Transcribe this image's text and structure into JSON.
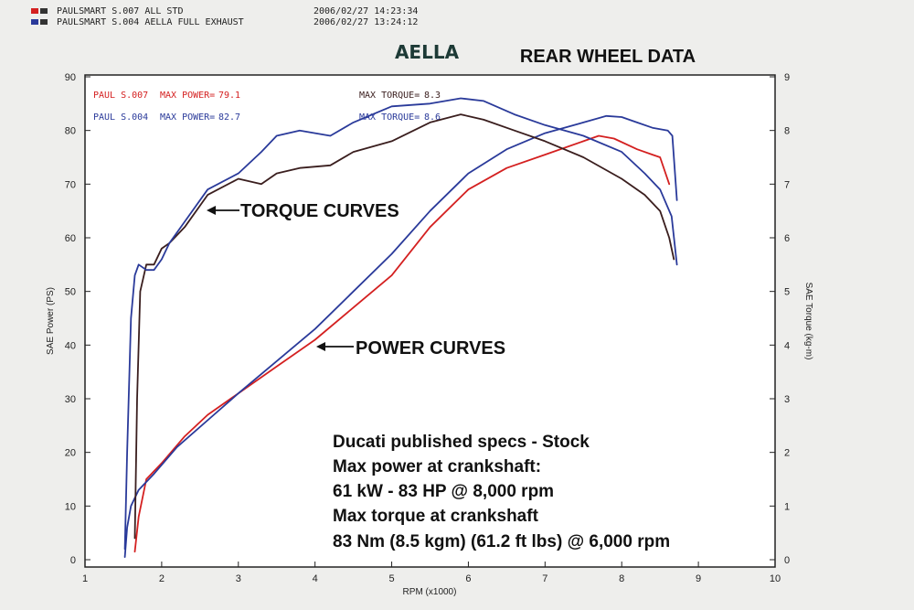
{
  "header": {
    "runs": [
      {
        "label": "PAULSMART S.007 ALL STD",
        "timestamp": "2006/02/27 14:23:34",
        "color": "#d42020"
      },
      {
        "label": "PAULSMART S.004 AELLA FULL EXHAUST",
        "timestamp": "2006/02/27 13:24:12",
        "color": "#2a3a9a"
      }
    ]
  },
  "brand": "AELLA",
  "title": "REAR WHEEL DATA",
  "chart_data": {
    "type": "line",
    "xlabel": "RPM (x1000)",
    "ylabel_left": "SAE Power (PS)",
    "ylabel_right": "SAE Torque (kg-m)",
    "xlim": [
      1,
      10
    ],
    "ylim_left": [
      0,
      90
    ],
    "ylim_right": [
      0,
      9
    ],
    "x_ticks": [
      "1",
      "2",
      "3",
      "4",
      "5",
      "6",
      "7",
      "8",
      "9",
      "10"
    ],
    "y_ticks_left": [
      "0",
      "10",
      "20",
      "30",
      "40",
      "50",
      "60",
      "70",
      "80",
      "90"
    ],
    "y_ticks_right": [
      "0",
      "1",
      "2",
      "3",
      "4",
      "5",
      "6",
      "7",
      "8",
      "9"
    ],
    "grid": false,
    "series": [
      {
        "name": "PAUL S.007",
        "kind": "power",
        "axis": "left",
        "color": "#d42020",
        "x": [
          1.65,
          1.7,
          1.8,
          2.0,
          2.3,
          2.6,
          3.0,
          3.5,
          4.0,
          4.5,
          5.0,
          5.5,
          6.0,
          6.5,
          7.0,
          7.5,
          7.7,
          7.9,
          8.2,
          8.4,
          8.5,
          8.62
        ],
        "y": [
          1.5,
          8,
          15,
          18,
          23,
          27,
          31,
          36,
          41,
          47,
          53,
          62,
          69,
          73,
          75.5,
          78,
          79,
          78.5,
          76.5,
          75.5,
          75,
          70
        ]
      },
      {
        "name": "PAUL S.004",
        "kind": "power",
        "axis": "left",
        "color": "#2a3a9a",
        "x": [
          1.52,
          1.55,
          1.6,
          1.7,
          1.9,
          2.2,
          2.6,
          3.0,
          3.5,
          4.0,
          4.5,
          5.0,
          5.5,
          6.0,
          6.5,
          7.0,
          7.5,
          7.8,
          8.0,
          8.2,
          8.4,
          8.6,
          8.66,
          8.72
        ],
        "y": [
          0.5,
          6,
          10,
          13,
          16,
          21,
          26,
          31,
          37,
          43,
          50,
          57,
          65,
          72,
          76.5,
          79.5,
          81.5,
          82.7,
          82.5,
          81.5,
          80.5,
          80,
          79,
          67
        ]
      },
      {
        "name": "PAUL S.007",
        "kind": "torque",
        "axis": "right",
        "color": "#3a1e1e",
        "x": [
          1.65,
          1.68,
          1.72,
          1.8,
          1.9,
          2.0,
          2.1,
          2.3,
          2.6,
          3.0,
          3.3,
          3.5,
          3.8,
          4.2,
          4.5,
          5.0,
          5.5,
          5.9,
          6.2,
          6.6,
          7.0,
          7.5,
          8.0,
          8.3,
          8.5,
          8.62,
          8.68
        ],
        "y": [
          0.4,
          3.0,
          5.0,
          5.5,
          5.5,
          5.8,
          5.9,
          6.2,
          6.8,
          7.1,
          7.0,
          7.2,
          7.3,
          7.35,
          7.6,
          7.8,
          8.15,
          8.3,
          8.2,
          8.0,
          7.8,
          7.5,
          7.1,
          6.8,
          6.5,
          6.0,
          5.6
        ]
      },
      {
        "name": "PAUL S.004",
        "kind": "torque",
        "axis": "right",
        "color": "#2a3a9a",
        "x": [
          1.52,
          1.55,
          1.6,
          1.65,
          1.7,
          1.8,
          1.9,
          2.0,
          2.1,
          2.3,
          2.6,
          3.0,
          3.3,
          3.5,
          3.8,
          4.2,
          4.5,
          5.0,
          5.5,
          5.9,
          6.2,
          6.6,
          7.0,
          7.5,
          8.0,
          8.3,
          8.5,
          8.65,
          8.72
        ],
        "y": [
          0.2,
          2.0,
          4.5,
          5.3,
          5.5,
          5.4,
          5.4,
          5.6,
          5.9,
          6.3,
          6.9,
          7.2,
          7.6,
          7.9,
          8.0,
          7.9,
          8.15,
          8.45,
          8.5,
          8.6,
          8.55,
          8.3,
          8.1,
          7.9,
          7.6,
          7.2,
          6.9,
          6.4,
          5.5
        ]
      }
    ],
    "annotations": {
      "legend": [
        {
          "run": "PAUL S.007",
          "power_label": "MAX POWER=",
          "power_value": "79.1",
          "torque_label": "MAX TORQUE=",
          "torque_value": "8.3",
          "color": "#d42020",
          "torque_color": "#3a1e1e"
        },
        {
          "run": "PAUL S.004",
          "power_label": "MAX POWER=",
          "power_value": "82.7",
          "torque_label": "MAX TORQUE=",
          "torque_value": "8.6",
          "color": "#2a3a9a",
          "torque_color": "#2a3a9a"
        }
      ],
      "torque_label": "TORQUE CURVES",
      "power_label": "POWER CURVES",
      "specs": [
        "Ducati published specs - Stock",
        "Max power at crankshaft:",
        "61 kW - 83 HP @ 8,000 rpm",
        "Max torque at crankshaft",
        "83 Nm (8.5 kgm) (61.2 ft lbs) @ 6,000 rpm"
      ]
    }
  }
}
